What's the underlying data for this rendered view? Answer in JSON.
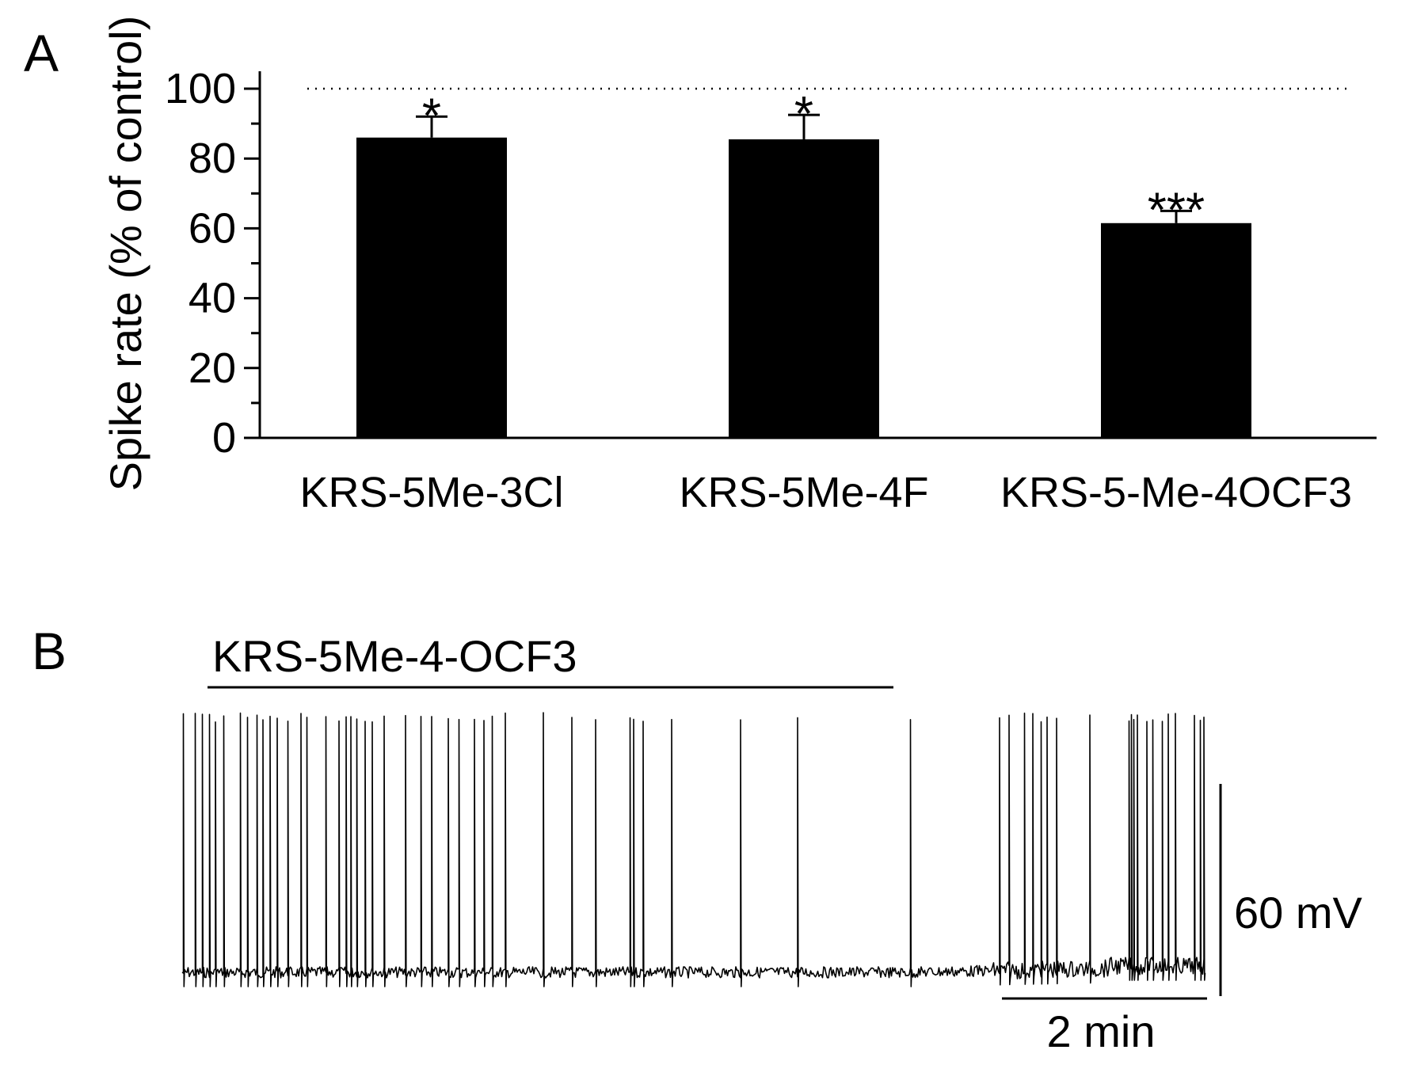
{
  "panel_a": {
    "label": "A",
    "chart_data": {
      "type": "bar",
      "categories": [
        "KRS-5Me-3Cl",
        "KRS-5Me-4F",
        "KRS-5-Me-4OCF3"
      ],
      "values": [
        86,
        85.5,
        61.5
      ],
      "errors": [
        6,
        7,
        3.5
      ],
      "significance": [
        "*",
        "*",
        "***"
      ],
      "ylabel": "Spike rate (% of control)",
      "ylim": [
        0,
        100
      ],
      "yticks": [
        0,
        20,
        40,
        60,
        80,
        100
      ],
      "reference_line": 100,
      "bar_color": "#000000"
    }
  },
  "panel_b": {
    "label": "B",
    "drug_label": "KRS-5Me-4-OCF3",
    "scale_voltage_label": "60 mV",
    "scale_time_label": "2 min",
    "trace_color": "#000000"
  }
}
